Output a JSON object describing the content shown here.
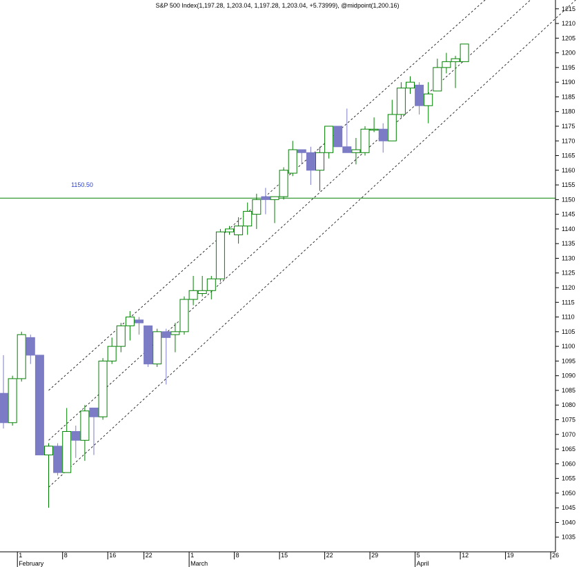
{
  "chart_data": {
    "type": "candlestick",
    "title": "S&P 500 Index(1,197.28, 1,203.04, 1,197.28, 1,203.04, +5.73999), @midpoint(1,200.16)",
    "ylim": [
      1030,
      1218
    ],
    "y_ticks": [
      1035,
      1040,
      1045,
      1050,
      1055,
      1060,
      1065,
      1070,
      1075,
      1080,
      1085,
      1090,
      1095,
      1100,
      1105,
      1110,
      1115,
      1120,
      1125,
      1130,
      1135,
      1140,
      1145,
      1150,
      1155,
      1160,
      1165,
      1170,
      1175,
      1180,
      1185,
      1190,
      1195,
      1200,
      1205,
      1210,
      1215
    ],
    "x_day_ticks": [
      {
        "label": "1",
        "i": 2
      },
      {
        "label": "8",
        "i": 7
      },
      {
        "label": "16",
        "i": 12
      },
      {
        "label": "22",
        "i": 16
      },
      {
        "label": "1",
        "i": 21
      },
      {
        "label": "8",
        "i": 26
      },
      {
        "label": "15",
        "i": 31
      },
      {
        "label": "22",
        "i": 36
      },
      {
        "label": "29",
        "i": 41
      },
      {
        "label": "5",
        "i": 46
      },
      {
        "label": "12",
        "i": 51
      },
      {
        "label": "19",
        "i": 56
      },
      {
        "label": "26",
        "i": 61
      }
    ],
    "x_month_labels": [
      {
        "label": "February",
        "i": 2
      },
      {
        "label": "March",
        "i": 21
      },
      {
        "label": "April",
        "i": 46
      }
    ],
    "horizontal_line": {
      "value": 1150.5,
      "label": "1150.50",
      "color": "#008000"
    },
    "up_color": "#008000",
    "down_color": "#7b7bc6",
    "channel": {
      "upper": [
        [
          5,
          1085
        ],
        [
          54,
          1220
        ]
      ],
      "lower": [
        [
          5,
          1052
        ],
        [
          64,
          1220
        ]
      ],
      "mid": [
        [
          5,
          1068
        ],
        [
          59,
          1220
        ]
      ]
    },
    "candles": [
      {
        "o": 1084,
        "h": 1097,
        "l": 1072,
        "c": 1074
      },
      {
        "o": 1074,
        "h": 1090,
        "l": 1073,
        "c": 1089
      },
      {
        "o": 1089,
        "h": 1105,
        "l": 1088,
        "c": 1104
      },
      {
        "o": 1103,
        "h": 1104,
        "l": 1094,
        "c": 1097
      },
      {
        "o": 1097,
        "h": 1097,
        "l": 1063,
        "c": 1063
      },
      {
        "o": 1063,
        "h": 1067,
        "l": 1045,
        "c": 1066
      },
      {
        "o": 1066,
        "h": 1067,
        "l": 1056,
        "c": 1057
      },
      {
        "o": 1057,
        "h": 1079,
        "l": 1057,
        "c": 1071
      },
      {
        "o": 1071,
        "h": 1073,
        "l": 1062,
        "c": 1068
      },
      {
        "o": 1068,
        "h": 1080,
        "l": 1061,
        "c": 1078
      },
      {
        "o": 1079,
        "h": 1079,
        "l": 1063,
        "c": 1076
      },
      {
        "o": 1076,
        "h": 1096,
        "l": 1075,
        "c": 1095
      },
      {
        "o": 1095,
        "h": 1103,
        "l": 1094,
        "c": 1100
      },
      {
        "o": 1100,
        "h": 1108,
        "l": 1098,
        "c": 1107
      },
      {
        "o": 1107,
        "h": 1112,
        "l": 1102,
        "c": 1110
      },
      {
        "o": 1109,
        "h": 1110,
        "l": 1104,
        "c": 1108
      },
      {
        "o": 1107,
        "h": 1107,
        "l": 1093,
        "c": 1094
      },
      {
        "o": 1094,
        "h": 1106,
        "l": 1093,
        "c": 1105
      },
      {
        "o": 1105,
        "h": 1106,
        "l": 1087,
        "c": 1103
      },
      {
        "o": 1104,
        "h": 1108,
        "l": 1098,
        "c": 1105
      },
      {
        "o": 1105,
        "h": 1117,
        "l": 1104,
        "c": 1116
      },
      {
        "o": 1116,
        "h": 1124,
        "l": 1114,
        "c": 1119
      },
      {
        "o": 1118,
        "h": 1124,
        "l": 1117,
        "c": 1119
      },
      {
        "o": 1119,
        "h": 1124,
        "l": 1116,
        "c": 1123
      },
      {
        "o": 1123,
        "h": 1140,
        "l": 1122,
        "c": 1139
      },
      {
        "o": 1139,
        "h": 1141,
        "l": 1138,
        "c": 1140
      },
      {
        "o": 1138,
        "h": 1144,
        "l": 1135,
        "c": 1141
      },
      {
        "o": 1141,
        "h": 1149,
        "l": 1138,
        "c": 1146
      },
      {
        "o": 1145,
        "h": 1152,
        "l": 1140,
        "c": 1150
      },
      {
        "o": 1151,
        "h": 1154,
        "l": 1145,
        "c": 1150
      },
      {
        "o": 1150,
        "h": 1151,
        "l": 1142,
        "c": 1151
      },
      {
        "o": 1151,
        "h": 1161,
        "l": 1150,
        "c": 1160
      },
      {
        "o": 1159,
        "h": 1170,
        "l": 1158,
        "c": 1167
      },
      {
        "o": 1167,
        "h": 1167,
        "l": 1162,
        "c": 1166
      },
      {
        "o": 1166,
        "h": 1168,
        "l": 1155,
        "c": 1160
      },
      {
        "o": 1160,
        "h": 1168,
        "l": 1153,
        "c": 1166
      },
      {
        "o": 1166,
        "h": 1175,
        "l": 1164,
        "c": 1175
      },
      {
        "o": 1175,
        "h": 1175,
        "l": 1168,
        "c": 1168
      },
      {
        "o": 1168,
        "h": 1181,
        "l": 1166,
        "c": 1166
      },
      {
        "o": 1166,
        "h": 1171,
        "l": 1162,
        "c": 1167
      },
      {
        "o": 1166,
        "h": 1175,
        "l": 1165,
        "c": 1174
      },
      {
        "o": 1174,
        "h": 1178,
        "l": 1173,
        "c": 1174
      },
      {
        "o": 1174,
        "h": 1176,
        "l": 1166,
        "c": 1170
      },
      {
        "o": 1170,
        "h": 1184,
        "l": 1170,
        "c": 1179
      },
      {
        "o": 1179,
        "h": 1190,
        "l": 1178,
        "c": 1188
      },
      {
        "o": 1188,
        "h": 1192,
        "l": 1186,
        "c": 1190
      },
      {
        "o": 1189,
        "h": 1190,
        "l": 1179,
        "c": 1182
      },
      {
        "o": 1182,
        "h": 1190,
        "l": 1176,
        "c": 1186
      },
      {
        "o": 1187,
        "h": 1198,
        "l": 1187,
        "c": 1195
      },
      {
        "o": 1195,
        "h": 1200,
        "l": 1193,
        "c": 1197
      },
      {
        "o": 1197,
        "h": 1199,
        "l": 1188,
        "c": 1198
      },
      {
        "o": 1197,
        "h": 1203,
        "l": 1197,
        "c": 1203
      }
    ]
  }
}
